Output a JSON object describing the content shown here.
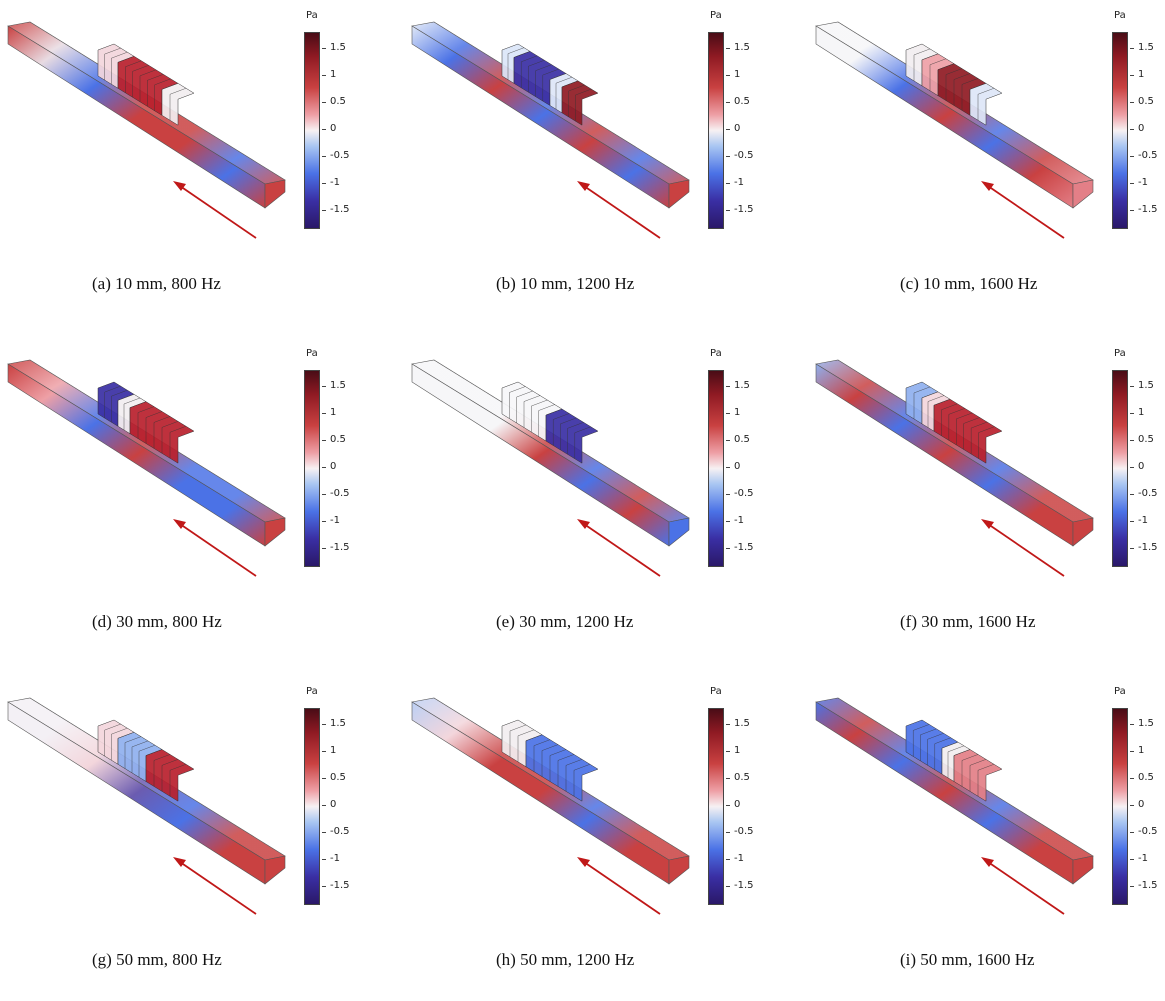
{
  "colorbar": {
    "unit": "Pa",
    "ticks": [
      "1.5",
      "1",
      "0.5",
      "0",
      "-0.5",
      "-1",
      "-1.5"
    ],
    "colors": {
      "max": "#4a0c16",
      "high": "#c94141",
      "zero": "#f7f1f3",
      "low": "#4b72e6",
      "min": "#2a1868"
    }
  },
  "arrow_color": "#c01818",
  "panels": [
    {
      "caption": "(a)  10 mm, 800 Hz",
      "blocks": [
        {
          "color": "#f3d6dc",
          "frac": 0.25
        },
        {
          "color": "#b9202c",
          "frac": 0.55
        },
        {
          "color": "#f2eef0",
          "frac": 0.2
        }
      ],
      "duct": [
        "#c94141",
        "#e8dbe2",
        "#4b72e6",
        "#c94141",
        "#c94141",
        "#4b72e6",
        "#c94141"
      ]
    },
    {
      "caption": "(b)  10 mm, 1200 Hz",
      "blocks": [
        {
          "color": "#dbe6f8",
          "frac": 0.15
        },
        {
          "color": "#3a2fa4",
          "frac": 0.45
        },
        {
          "color": "#dde6f7",
          "frac": 0.15
        },
        {
          "color": "#8f1a23",
          "frac": 0.25
        }
      ],
      "duct": [
        "#e0e8f7",
        "#4b72e6",
        "#c94141",
        "#4b72e6",
        "#c94141",
        "#4b72e6",
        "#c94141"
      ]
    },
    {
      "caption": "(c)  10 mm, 1600 Hz",
      "blocks": [
        {
          "color": "#f2eef0",
          "frac": 0.2
        },
        {
          "color": "#eea0a6",
          "frac": 0.2
        },
        {
          "color": "#8f1a23",
          "frac": 0.4
        },
        {
          "color": "#dde6f7",
          "frac": 0.2
        }
      ],
      "duct": [
        "#f6f6f8",
        "#f6f6f8",
        "#4b72e6",
        "#c94141",
        "#4b72e6",
        "#c94141",
        "#e37f87"
      ]
    },
    {
      "caption": "(d)  30 mm, 800 Hz",
      "blocks": [
        {
          "color": "#3a2fa4",
          "frac": 0.25
        },
        {
          "color": "#f2eef0",
          "frac": 0.15
        },
        {
          "color": "#b9202c",
          "frac": 0.6
        }
      ],
      "duct": [
        "#c94141",
        "#eea0a6",
        "#4b72e6",
        "#c94141",
        "#4b72e6",
        "#4b72e6",
        "#c94141"
      ]
    },
    {
      "caption": "(e)  30 mm, 1200 Hz",
      "blocks": [
        {
          "color": "#f6f6f8",
          "frac": 0.55
        },
        {
          "color": "#3a2fa4",
          "frac": 0.45
        }
      ],
      "duct": [
        "#f6f6f8",
        "#f6f6f8",
        "#f6f6f8",
        "#c94141",
        "#4b72e6",
        "#c94141",
        "#4b72e6"
      ]
    },
    {
      "caption": "(f)  30 mm, 1600 Hz",
      "blocks": [
        {
          "color": "#8fb0ef",
          "frac": 0.2
        },
        {
          "color": "#f3d6dc",
          "frac": 0.15
        },
        {
          "color": "#b9202c",
          "frac": 0.65
        }
      ],
      "duct": [
        "#8fb0ef",
        "#c94141",
        "#4b72e6",
        "#c94141",
        "#4b72e6",
        "#c94141",
        "#c94141"
      ]
    },
    {
      "caption": "(g)  50 mm, 800 Hz",
      "blocks": [
        {
          "color": "#f3d6dc",
          "frac": 0.25
        },
        {
          "color": "#8fb0ef",
          "frac": 0.35
        },
        {
          "color": "#b9202c",
          "frac": 0.4
        }
      ],
      "duct": [
        "#f3f0f5",
        "#f3f0f5",
        "#f3d6dc",
        "#6b5cb0",
        "#4b72e6",
        "#c94141",
        "#c94141"
      ]
    },
    {
      "caption": "(h)  50 mm, 1200 Hz",
      "blocks": [
        {
          "color": "#f2eef0",
          "frac": 0.3
        },
        {
          "color": "#4b72e6",
          "frac": 0.7
        }
      ],
      "duct": [
        "#bcd0f4",
        "#f3d6dc",
        "#c94141",
        "#c94141",
        "#4b72e6",
        "#c94141",
        "#c94141"
      ]
    },
    {
      "caption": "(i)  50 mm, 1600 Hz",
      "blocks": [
        {
          "color": "#4b72e6",
          "frac": 0.45
        },
        {
          "color": "#f2eef0",
          "frac": 0.15
        },
        {
          "color": "#e37f87",
          "frac": 0.4
        }
      ],
      "duct": [
        "#4b72e6",
        "#c94141",
        "#4b72e6",
        "#c94141",
        "#4b72e6",
        "#c94141",
        "#c94141"
      ]
    }
  ]
}
